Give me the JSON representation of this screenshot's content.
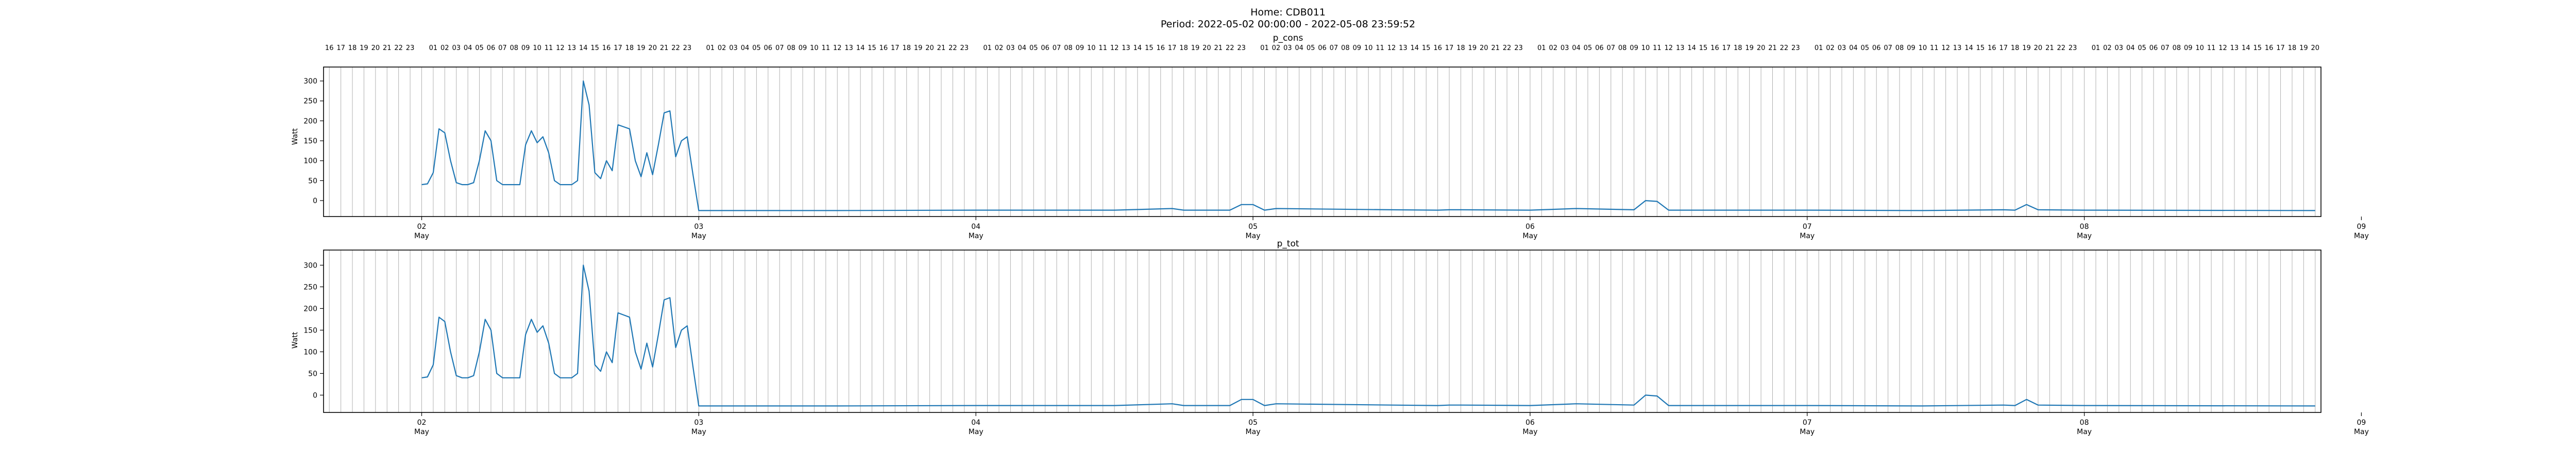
{
  "figure": {
    "title_line1": "Home: CDB011",
    "title_line2": "Period: 2022-05-02 00:00:00 - 2022-05-08 23:59:52"
  },
  "chart_data": [
    {
      "type": "line",
      "title": "p_cons",
      "ylabel": "Watt",
      "ylim": [
        -40,
        335
      ],
      "yticks": [
        0,
        50,
        100,
        150,
        200,
        250,
        300
      ],
      "xlim_hours": [
        -8.5,
        164.5
      ],
      "x_major_ticks": [
        {
          "hour": 0,
          "day": "02",
          "month": "May"
        },
        {
          "hour": 24,
          "day": "03",
          "month": "May"
        },
        {
          "hour": 48,
          "day": "04",
          "month": "May"
        },
        {
          "hour": 72,
          "day": "05",
          "month": "May"
        },
        {
          "hour": 96,
          "day": "06",
          "month": "May"
        },
        {
          "hour": 120,
          "day": "07",
          "month": "May"
        },
        {
          "hour": 144,
          "day": "08",
          "month": "May"
        },
        {
          "hour": 168,
          "day": "09",
          "month": "May"
        }
      ],
      "hour_grid": true,
      "x_hours": [
        0,
        0.5,
        1,
        1.5,
        2,
        2.5,
        3,
        3.5,
        4,
        4.5,
        5,
        5.5,
        6,
        6.5,
        7,
        7.5,
        8,
        8.5,
        9,
        9.5,
        10,
        10.5,
        11,
        11.5,
        12,
        12.5,
        13,
        13.5,
        14,
        14.5,
        15,
        15.5,
        16,
        16.5,
        17,
        17.5,
        18,
        18.5,
        19,
        19.5,
        20,
        20.5,
        21,
        21.5,
        22,
        22.5,
        23,
        23.5,
        24,
        36,
        48,
        60,
        65,
        66,
        70,
        71,
        72,
        73,
        74,
        84,
        88,
        89,
        90,
        96,
        100,
        105,
        106,
        107,
        108,
        120,
        130,
        137,
        138,
        139,
        140,
        144,
        164
      ],
      "values": [
        40,
        42,
        70,
        180,
        170,
        100,
        45,
        40,
        40,
        45,
        100,
        175,
        150,
        50,
        40,
        40,
        40,
        40,
        140,
        175,
        145,
        160,
        120,
        50,
        40,
        40,
        40,
        50,
        300,
        240,
        70,
        55,
        100,
        75,
        190,
        185,
        180,
        100,
        60,
        120,
        65,
        140,
        220,
        225,
        110,
        150,
        160,
        65,
        -25,
        -25,
        -24,
        -24,
        -20,
        -24,
        -24,
        -10,
        -10,
        -24,
        -20,
        -23,
        -24,
        -23,
        -23,
        -24,
        -20,
        -23,
        0,
        -2,
        -24,
        -24,
        -25,
        -23,
        -24,
        -10,
        -23,
        -24,
        -25
      ]
    },
    {
      "type": "line",
      "title": "p_tot",
      "ylabel": "Watt",
      "ylim": [
        -40,
        335
      ],
      "yticks": [
        0,
        50,
        100,
        150,
        200,
        250,
        300
      ],
      "xlim_hours": [
        -8.5,
        164.5
      ],
      "x_major_ticks": [
        {
          "hour": 0,
          "day": "02",
          "month": "May"
        },
        {
          "hour": 24,
          "day": "03",
          "month": "May"
        },
        {
          "hour": 48,
          "day": "04",
          "month": "May"
        },
        {
          "hour": 72,
          "day": "05",
          "month": "May"
        },
        {
          "hour": 96,
          "day": "06",
          "month": "May"
        },
        {
          "hour": 120,
          "day": "07",
          "month": "May"
        },
        {
          "hour": 144,
          "day": "08",
          "month": "May"
        },
        {
          "hour": 168,
          "day": "09",
          "month": "May"
        }
      ],
      "hour_grid": true,
      "x_hours": [
        0,
        0.5,
        1,
        1.5,
        2,
        2.5,
        3,
        3.5,
        4,
        4.5,
        5,
        5.5,
        6,
        6.5,
        7,
        7.5,
        8,
        8.5,
        9,
        9.5,
        10,
        10.5,
        11,
        11.5,
        12,
        12.5,
        13,
        13.5,
        14,
        14.5,
        15,
        15.5,
        16,
        16.5,
        17,
        17.5,
        18,
        18.5,
        19,
        19.5,
        20,
        20.5,
        21,
        21.5,
        22,
        22.5,
        23,
        23.5,
        24,
        36,
        48,
        60,
        65,
        66,
        70,
        71,
        72,
        73,
        74,
        84,
        88,
        89,
        90,
        96,
        100,
        105,
        106,
        107,
        108,
        120,
        130,
        137,
        138,
        139,
        140,
        144,
        164
      ],
      "values": [
        40,
        42,
        70,
        180,
        170,
        100,
        45,
        40,
        40,
        45,
        100,
        175,
        150,
        50,
        40,
        40,
        40,
        40,
        140,
        175,
        145,
        160,
        120,
        50,
        40,
        40,
        40,
        50,
        300,
        240,
        70,
        55,
        100,
        75,
        190,
        185,
        180,
        100,
        60,
        120,
        65,
        140,
        220,
        225,
        110,
        150,
        160,
        65,
        -25,
        -25,
        -24,
        -24,
        -20,
        -24,
        -24,
        -10,
        -10,
        -24,
        -20,
        -23,
        -24,
        -23,
        -23,
        -24,
        -20,
        -23,
        0,
        -2,
        -24,
        -24,
        -25,
        -23,
        -24,
        -10,
        -23,
        -24,
        -25
      ]
    }
  ]
}
